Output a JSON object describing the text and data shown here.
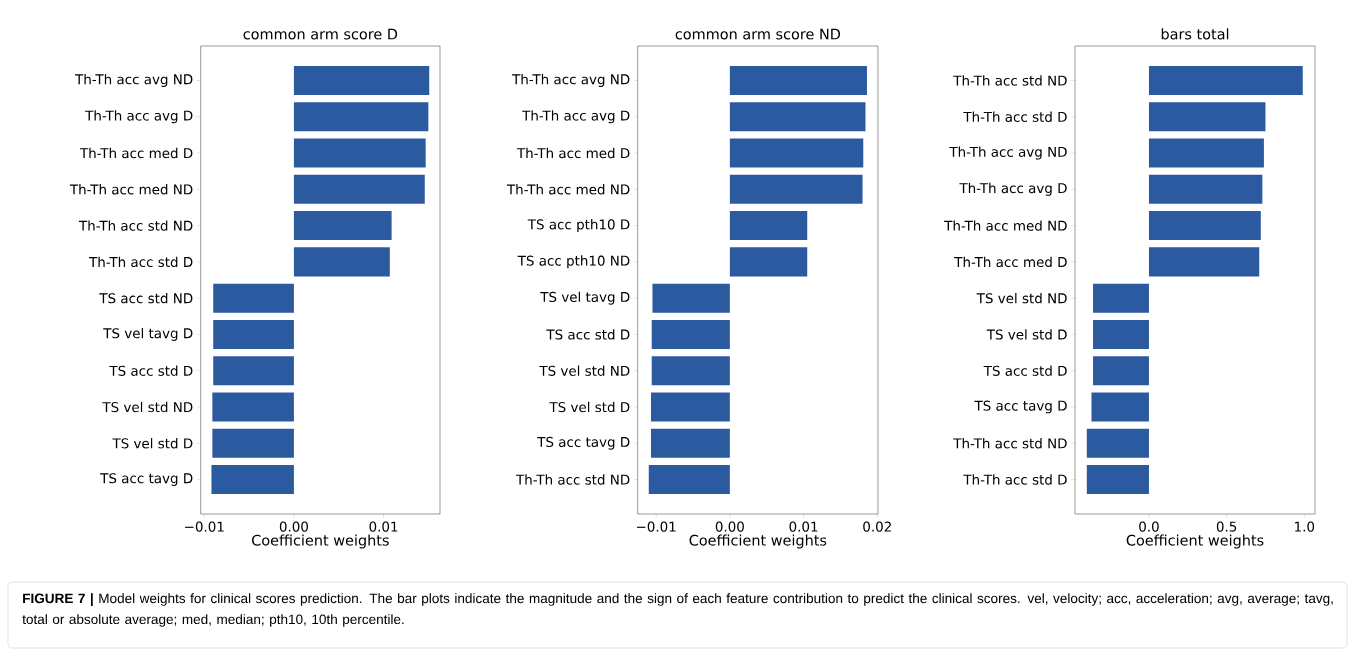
{
  "chart_data": [
    {
      "type": "bar",
      "orientation": "horizontal",
      "title": "common arm score D",
      "xlabel": "Coefficient weights",
      "color": "#2c5aa0",
      "categories": [
        "Th-Th acc avg ND",
        "Th-Th acc avg D",
        "Th-Th acc med D",
        "Th-Th acc med ND",
        "Th-Th acc std ND",
        "Th-Th acc std D",
        "TS acc std ND",
        "TS vel tavg D",
        "TS acc std D",
        "TS vel std ND",
        "TS vel std D",
        "TS acc tavg D"
      ],
      "values": [
        0.0151,
        0.015,
        0.0147,
        0.0146,
        0.0109,
        0.0107,
        -0.009,
        -0.009,
        -0.009,
        -0.0091,
        -0.0091,
        -0.0092
      ],
      "xlim": [
        -0.0104,
        0.0163
      ],
      "xticks": [
        {
          "value": -0.01,
          "label": "−0.01"
        },
        {
          "value": 0,
          "label": "0.00"
        },
        {
          "value": 0.01,
          "label": "0.01"
        }
      ],
      "annotations": [
        "**FIGURE 7 |** Model weights for clinical scores prediction. The bar plots indicate the magnitude and the sign of each feature contribution to predict the clinical scores. vel, velocity; acc, acceleration; avg, average; tavg, total or absolute average; med, median; pth10, 10th percentile."
      ]
    },
    {
      "type": "bar",
      "orientation": "horizontal",
      "title": "common arm score ND",
      "xlabel": "Coefficient weights",
      "color": "#2c5aa0",
      "categories": [
        "Th-Th acc avg ND",
        "Th-Th acc avg D",
        "Th-Th acc med D",
        "Th-Th acc med ND",
        "TS acc pth10 D",
        "TS acc pth10 ND",
        "TS vel tavg D",
        "TS acc std D",
        "TS vel std ND",
        "TS vel std D",
        "TS acc tavg D",
        "Th-Th acc std ND"
      ],
      "values": [
        0.0186,
        0.0184,
        0.0181,
        0.018,
        0.0105,
        0.0105,
        -0.0105,
        -0.0106,
        -0.0106,
        -0.0107,
        -0.0107,
        -0.011
      ],
      "xlim": [
        -0.0125,
        0.0201
      ],
      "xticks": [
        {
          "value": -0.01,
          "label": "−0.01"
        },
        {
          "value": 0,
          "label": "0.00"
        },
        {
          "value": 0.01,
          "label": "0.01"
        },
        {
          "value": 0.02,
          "label": "0.02"
        }
      ]
    },
    {
      "type": "bar",
      "orientation": "horizontal",
      "title": "bars total",
      "xlabel": "Coefficient weights",
      "color": "#2c5aa0",
      "categories": [
        "Th-Th acc std ND",
        "Th-Th acc std D",
        "Th-Th acc avg ND",
        "Th-Th acc avg D",
        "Th-Th acc med ND",
        "Th-Th acc med D",
        "TS vel std ND",
        "TS vel std D",
        "TS acc std D",
        "TS acc tavg D",
        "Th-Th acc std ND",
        "Th-Th acc std D"
      ],
      "values": [
        0.99,
        0.75,
        0.74,
        0.73,
        0.72,
        0.71,
        -0.36,
        -0.36,
        -0.36,
        -0.37,
        -0.4,
        -0.4
      ],
      "xlim": [
        -0.476,
        1.069
      ],
      "xticks": [
        {
          "value": 0,
          "label": "0.0"
        },
        {
          "value": 0.5,
          "label": "0.5"
        },
        {
          "value": 1,
          "label": "1.0"
        }
      ]
    }
  ]
}
